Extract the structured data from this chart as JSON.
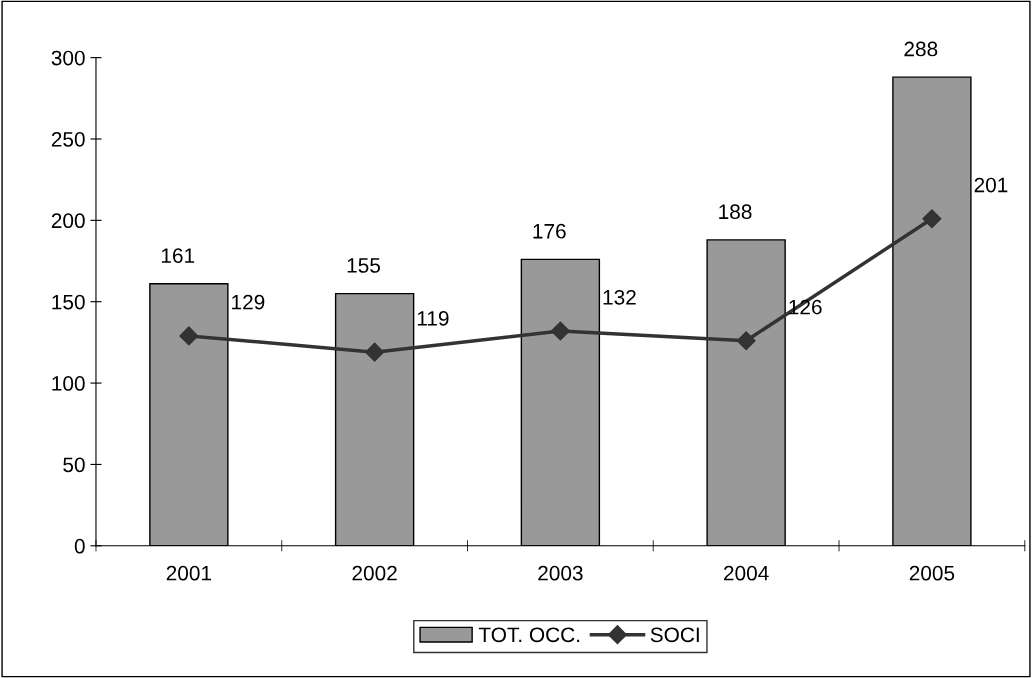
{
  "chart_data": {
    "type": "bar",
    "categories": [
      "2001",
      "2002",
      "2003",
      "2004",
      "2005"
    ],
    "series": [
      {
        "name": "TOT. OCC.",
        "color": "#999999",
        "values": [
          161,
          155,
          176,
          188,
          288
        ]
      },
      {
        "name": "SOCI",
        "type": "line",
        "color": "#333333",
        "marker": "diamond",
        "values": [
          129,
          119,
          132,
          126,
          201
        ]
      }
    ],
    "ylim": [
      0,
      300
    ],
    "yticks": [
      0,
      50,
      100,
      150,
      200,
      250,
      300
    ],
    "data_labels": true,
    "grid": false,
    "legend": "bottom"
  }
}
